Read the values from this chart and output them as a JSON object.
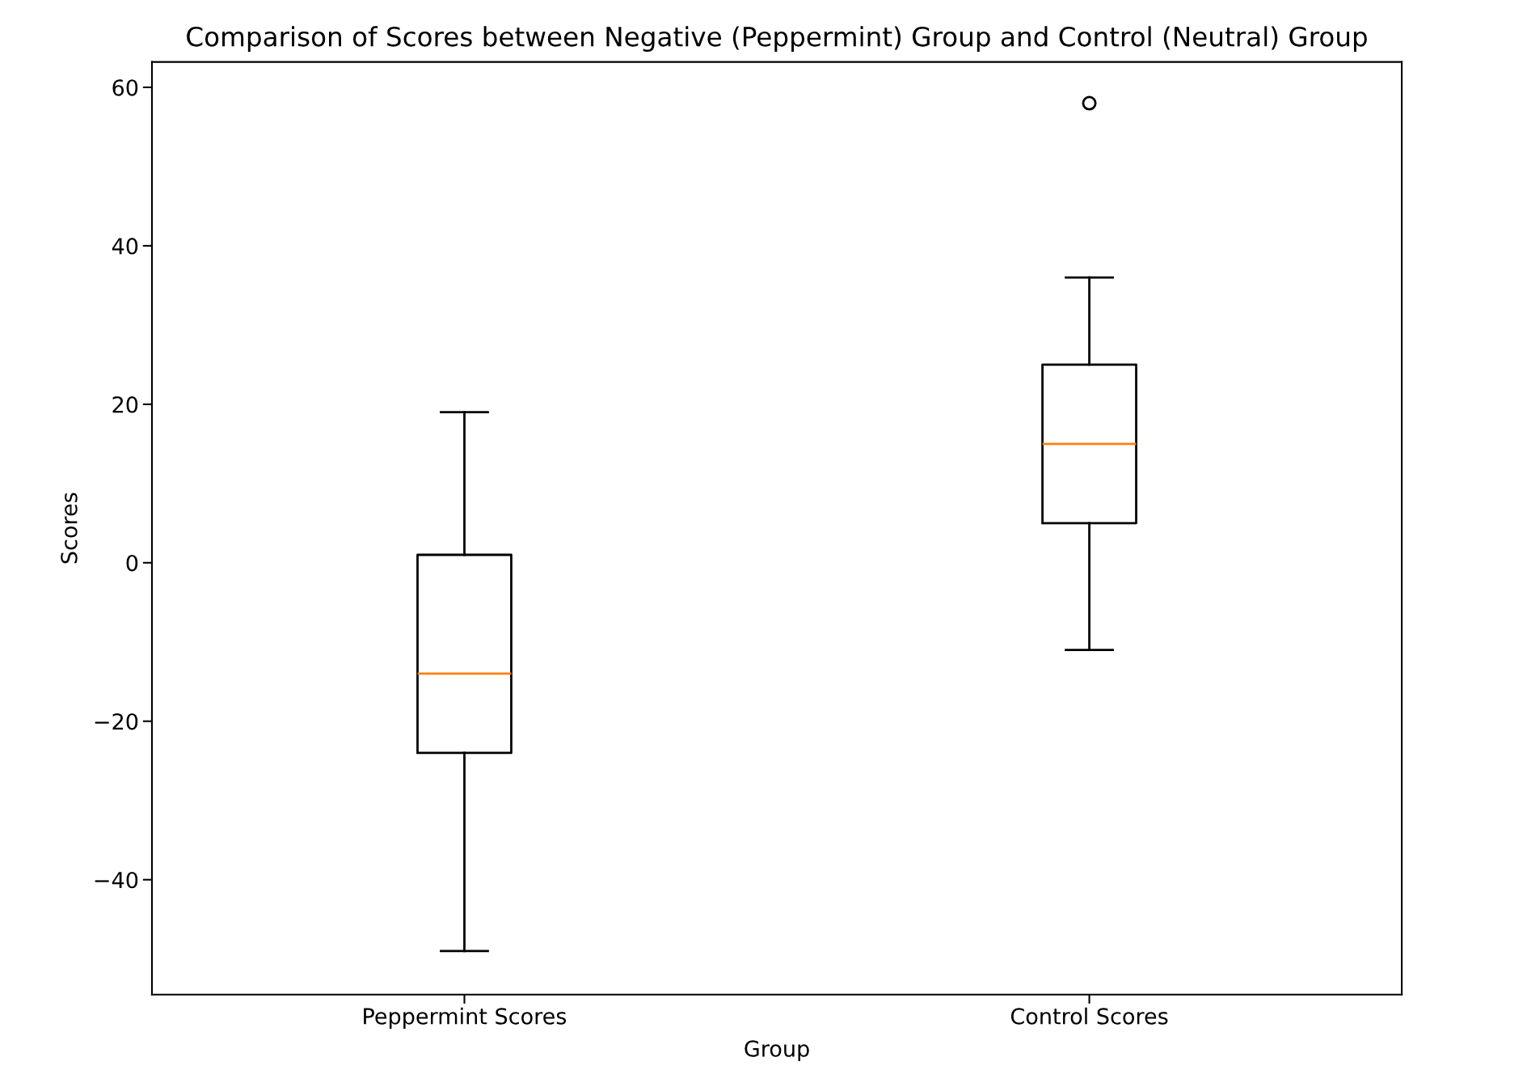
{
  "chart_data": {
    "type": "box",
    "title": "Comparison of Scores between Negative (Peppermint) Group and Control (Neutral) Group",
    "xlabel": "Group",
    "ylabel": "Scores",
    "categories": [
      "Peppermint Scores",
      "Control Scores"
    ],
    "boxes": [
      {
        "low": -49,
        "q1": -24,
        "median": -14,
        "q3": 1,
        "high": 19
      },
      {
        "low": -11,
        "q1": 5,
        "median": 15,
        "q3": 25,
        "high": 36,
        "outliers": [
          58
        ]
      }
    ],
    "ylim": [
      -54.5,
      63.2
    ],
    "yticks": [
      {
        "value": -40,
        "label": "−40"
      },
      {
        "value": -20,
        "label": "−20"
      },
      0,
      20,
      40,
      60
    ],
    "grid": false
  }
}
